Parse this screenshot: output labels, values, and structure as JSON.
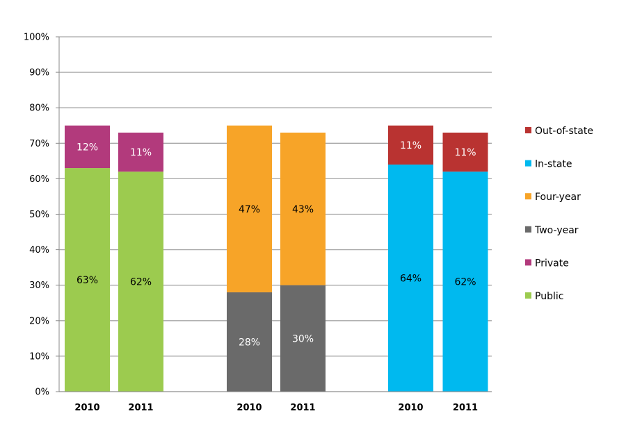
{
  "chart_data": {
    "type": "bar",
    "stacked": true,
    "ylim": [
      0,
      100
    ],
    "yticks": [
      "0%",
      "10%",
      "20%",
      "30%",
      "40%",
      "50%",
      "60%",
      "70%",
      "80%",
      "90%",
      "100%"
    ],
    "grid": true,
    "legend_placement": "right",
    "series_colors": {
      "Public": "#9ccb4f",
      "Private": "#b23a7c",
      "Two-year": "#6a6a6a",
      "Four-year": "#f7a428",
      "In-state": "#00b9ef",
      "Out-of-state": "#b93331"
    },
    "legend": [
      "Out-of-state",
      "In-state",
      "Four-year",
      "Two-year",
      "Private",
      "Public"
    ],
    "groups": [
      {
        "bars": [
          {
            "category": "2010",
            "segments": [
              {
                "series": "Public",
                "value": 63,
                "label": "63%"
              },
              {
                "series": "Private",
                "value": 12,
                "label": "12%"
              }
            ]
          },
          {
            "category": "2011",
            "segments": [
              {
                "series": "Public",
                "value": 62,
                "label": "62%"
              },
              {
                "series": "Private",
                "value": 11,
                "label": "11%"
              }
            ]
          }
        ]
      },
      {
        "bars": [
          {
            "category": "2010",
            "segments": [
              {
                "series": "Two-year",
                "value": 28,
                "label": "28%"
              },
              {
                "series": "Four-year",
                "value": 47,
                "label": "47%"
              }
            ]
          },
          {
            "category": "2011",
            "segments": [
              {
                "series": "Two-year",
                "value": 30,
                "label": "30%"
              },
              {
                "series": "Four-year",
                "value": 43,
                "label": "43%"
              }
            ]
          }
        ]
      },
      {
        "bars": [
          {
            "category": "2010",
            "segments": [
              {
                "series": "In-state",
                "value": 64,
                "label": "64%"
              },
              {
                "series": "Out-of-state",
                "value": 11,
                "label": "11%"
              }
            ]
          },
          {
            "category": "2011",
            "segments": [
              {
                "series": "In-state",
                "value": 62,
                "label": "62%"
              },
              {
                "series": "Out-of-state",
                "value": 11,
                "label": "11%"
              }
            ]
          }
        ]
      }
    ]
  }
}
